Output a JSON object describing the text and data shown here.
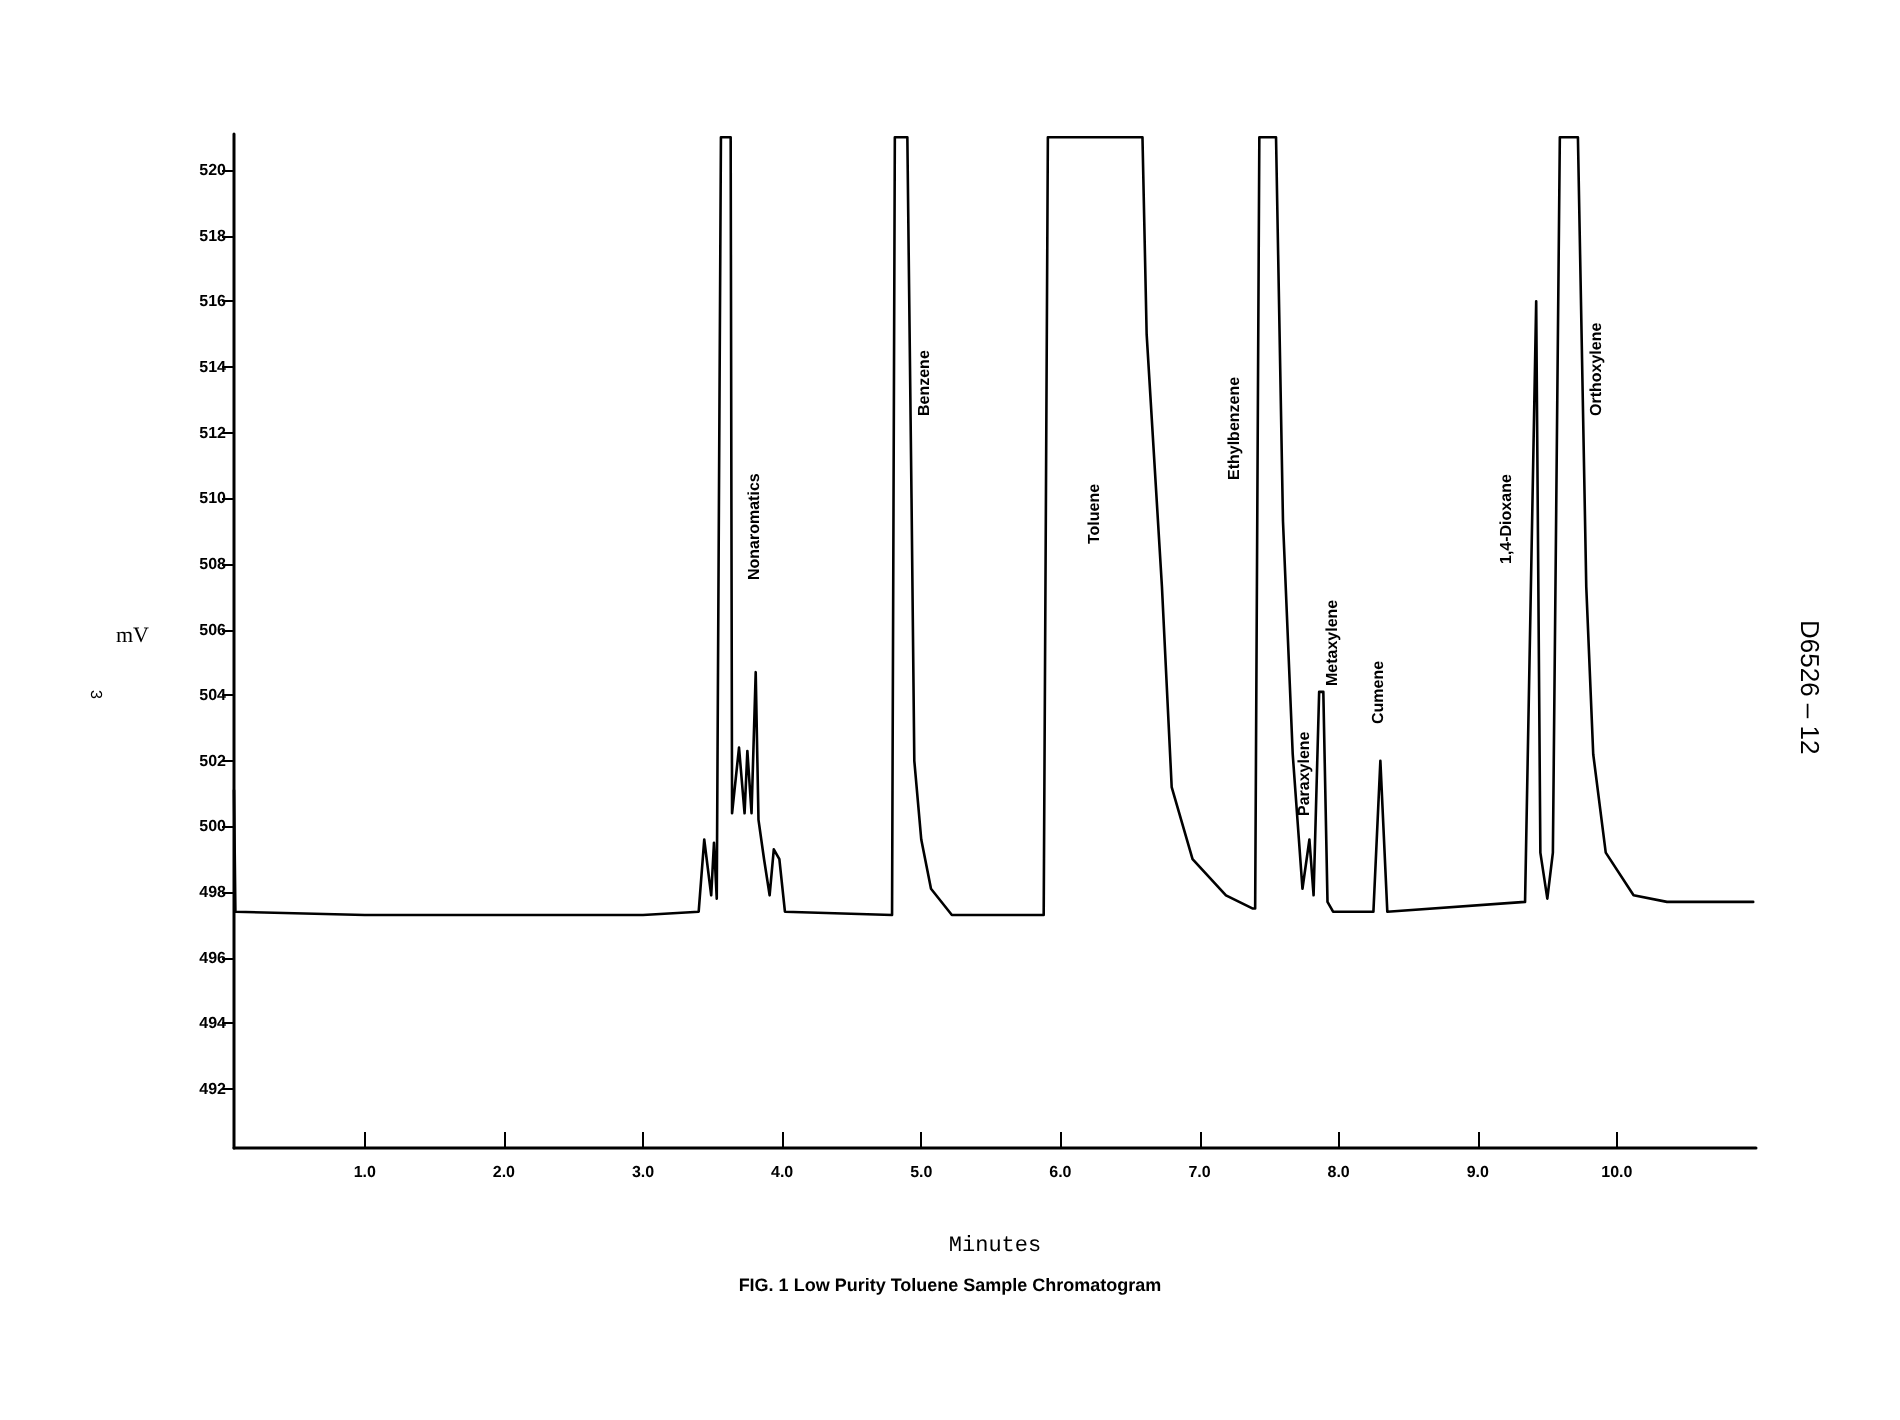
{
  "chart_data": {
    "type": "line",
    "title": "FIG. 1 Low Purity Toluene Sample Chromatogram",
    "xlabel": "Minutes",
    "ylabel": "mV",
    "x": [
      0.06,
      0.07,
      1.0,
      2.0,
      3.0,
      3.4,
      3.44,
      3.49,
      3.51,
      3.53,
      3.56,
      3.57,
      3.63,
      3.64,
      3.69,
      3.73,
      3.75,
      3.78,
      3.81,
      3.83,
      3.87,
      3.91,
      3.94,
      3.98,
      4.02,
      4.79,
      4.81,
      4.9,
      4.93,
      4.95,
      5.0,
      5.07,
      5.22,
      5.88,
      5.91,
      6.59,
      6.62,
      6.73,
      6.8,
      6.95,
      7.19,
      7.38,
      7.4,
      7.43,
      7.55,
      7.6,
      7.67,
      7.74,
      7.79,
      7.82,
      7.86,
      7.89,
      7.92,
      7.96,
      8.25,
      8.3,
      8.35,
      9.34,
      9.42,
      9.45,
      9.5,
      9.54,
      9.59,
      9.72,
      9.78,
      9.83,
      9.92,
      10.12,
      10.36,
      10.98
    ],
    "series": [
      {
        "color": "#000000",
        "values": [
          501.1,
          497.4,
          497.3,
          497.3,
          497.3,
          497.4,
          499.6,
          497.9,
          499.5,
          497.8,
          521,
          521,
          521,
          500.4,
          502.4,
          500.4,
          502.3,
          500.4,
          504.7,
          500.2,
          499.0,
          497.9,
          499.3,
          499.0,
          497.4,
          497.3,
          521,
          521,
          510,
          502,
          499.6,
          498.1,
          497.3,
          497.3,
          521,
          521,
          515,
          507.3,
          501.2,
          499.0,
          497.9,
          497.5,
          497.5,
          521,
          521,
          509.3,
          502.2,
          498.1,
          499.6,
          497.9,
          504.1,
          504.1,
          497.7,
          497.4,
          497.4,
          502.0,
          497.4,
          497.7,
          516.0,
          499.2,
          497.8,
          499.2,
          521,
          521,
          507.3,
          502.2,
          499.2,
          497.9,
          497.7,
          497.7
        ]
      }
    ],
    "xlim": [
      0.06,
      11.0
    ],
    "ylim": [
      490.2,
      521.1
    ],
    "xticks": [
      {
        "value": 1,
        "label": "1.0"
      },
      {
        "value": 2,
        "label": "2.0"
      },
      {
        "value": 3,
        "label": "3.0"
      },
      {
        "value": 4,
        "label": "4.0"
      },
      {
        "value": 5,
        "label": "5.0"
      },
      {
        "value": 6,
        "label": "6.0"
      },
      {
        "value": 7,
        "label": "7.0"
      },
      {
        "value": 8,
        "label": "8.0"
      },
      {
        "value": 9,
        "label": "9.0"
      },
      {
        "value": 10,
        "label": "10.0"
      }
    ],
    "yticks": [
      492,
      494,
      496,
      498,
      500,
      502,
      504,
      506,
      508,
      510,
      512,
      514,
      516,
      518,
      520
    ],
    "marker": "none",
    "line_style": "solid",
    "grid": false,
    "annotations": [
      "Nonaromatics",
      "Benzene",
      "Toluene",
      "Ethylbenzene",
      "Paraxylene",
      "Metaxylene",
      "Cumene",
      "1,4-Dioxane",
      "Orthoxylene",
      "3",
      "D6526 – 12"
    ]
  }
}
